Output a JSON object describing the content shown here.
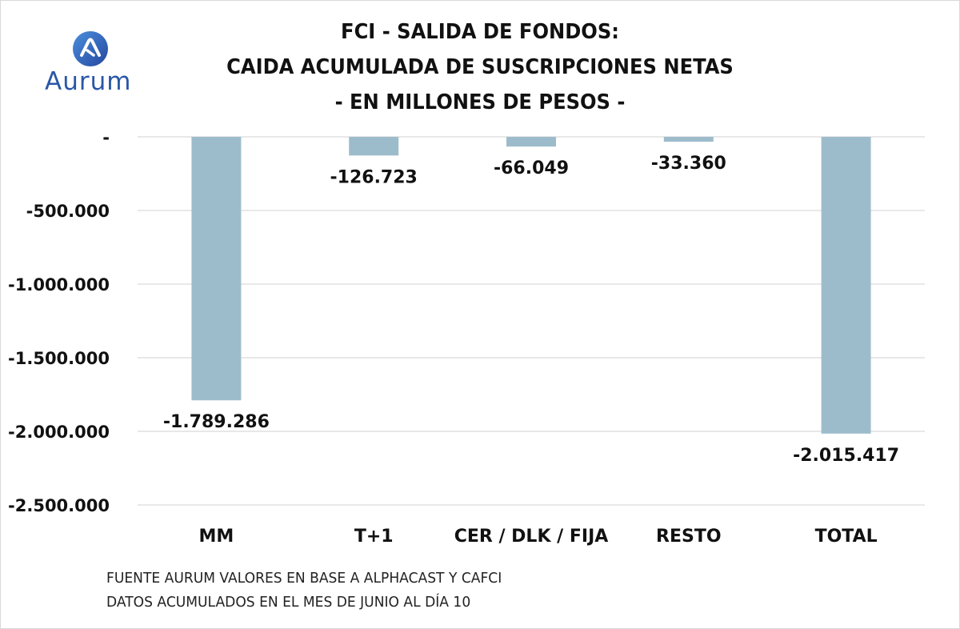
{
  "brand": {
    "name": "Aurum",
    "logo_icon": "aurum-logo-icon",
    "accent": "#2a57a6"
  },
  "chart_data": {
    "type": "bar",
    "title": [
      "FCI - SALIDA DE FONDOS:",
      "CAIDA ACUMULADA DE SUSCRIPCIONES NETAS",
      "- EN MILLONES DE PESOS -"
    ],
    "categories": [
      "MM",
      "T+1",
      "CER / DLK / FIJA",
      "RESTO",
      "TOTAL"
    ],
    "values": [
      -1789286,
      -126723,
      -66049,
      -33360,
      -2015417
    ],
    "data_labels": [
      "-1.789.286",
      "-126.723",
      "-66.049",
      "-33.360",
      "-2.015.417"
    ],
    "ylim": [
      -2500000,
      0
    ],
    "yticks": [
      0,
      -500000,
      -1000000,
      -1500000,
      -2000000,
      -2500000
    ],
    "ytick_labels": [
      "-",
      "-500.000",
      "-1.000.000",
      "-1.500.000",
      "-2.000.000",
      "-2.500.000"
    ],
    "grid": true,
    "bar_color": "#9dbccb",
    "xlabel": "",
    "ylabel": ""
  },
  "footnotes": [
    "FUENTE AURUM VALORES EN BASE A ALPHACAST Y CAFCI",
    "DATOS ACUMULADOS EN EL MES DE JUNIO AL DÍA 10"
  ]
}
